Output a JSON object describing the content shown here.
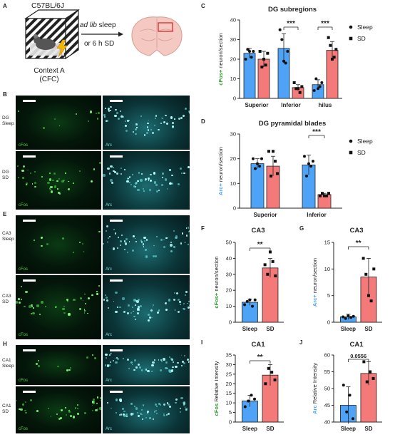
{
  "panels": {
    "A": {
      "letter": "A",
      "strain": "C57BL/6J",
      "context_name": "Context A",
      "context_code": "(CFC)",
      "arrow_line1_italic": "ad lib",
      "arrow_line1_rest": " sleep",
      "arrow_line2": "or 6 h SD"
    },
    "B": {
      "letter": "B",
      "row1": [
        "DG",
        "Sleep"
      ],
      "row2": [
        "DG",
        "SD"
      ],
      "ch1": "cFos",
      "ch2": "Arc"
    },
    "E": {
      "letter": "E",
      "row1": [
        "CA3",
        "Sleep"
      ],
      "row2": [
        "CA3",
        "SD"
      ],
      "ch1": "cFos",
      "ch2": "Arc"
    },
    "H": {
      "letter": "H",
      "row1": [
        "CA1",
        "Sleep"
      ],
      "row2": [
        "CA1",
        "SD"
      ],
      "ch1": "cFos",
      "ch2": "Arc"
    }
  },
  "legend": {
    "sleep": "Sleep",
    "sd": "SD"
  },
  "colors": {
    "sleep": "#4fa3f7",
    "sd": "#f47a7a",
    "cfos": "#2e9c2e",
    "arc": "#4fa3f7"
  },
  "chart_data": [
    {
      "panel": "C",
      "type": "bar",
      "title": "DG subregions",
      "ylabel_colored": "cFos+",
      "ylabel_rest": " neuron/section",
      "ylabel_color": "cfos",
      "categories": [
        "Superior",
        "Inferior",
        "hilus"
      ],
      "series": [
        {
          "name": "Sleep",
          "values": [
            23,
            25.5,
            7
          ],
          "err": [
            2.5,
            7.5,
            2.5
          ],
          "points": [
            [
              20,
              25,
              24,
              21,
              24
            ],
            [
              35,
              30,
              19,
              18,
              24
            ],
            [
              4,
              10,
              5,
              6,
              8
            ]
          ]
        },
        {
          "name": "SD",
          "values": [
            20,
            5.5,
            24.5
          ],
          "err": [
            4,
            1.5,
            4.5
          ],
          "points": [
            [
              24,
              16,
              20,
              17,
              23
            ],
            [
              8,
              5,
              5,
              3,
              6
            ],
            [
              31,
              27,
              20,
              21,
              25
            ]
          ]
        }
      ],
      "ylim": [
        0,
        40
      ],
      "yticks": [
        0,
        10,
        20,
        30,
        40
      ],
      "sig": [
        {
          "cat": 1,
          "label": "***"
        },
        {
          "cat": 2,
          "label": "***"
        }
      ]
    },
    {
      "panel": "D",
      "type": "bar",
      "title": "DG pyramidal blades",
      "ylabel_colored": "Arc+",
      "ylabel_rest": " neuron/section",
      "ylabel_color": "arc",
      "categories": [
        "Superior",
        "Inferior"
      ],
      "series": [
        {
          "name": "Sleep",
          "values": [
            18,
            17.5
          ],
          "err": [
            2,
            4
          ],
          "points": [
            [
              20,
              16,
              18,
              17,
              20
            ],
            [
              21,
              13,
              18,
              17,
              19
            ]
          ]
        },
        {
          "name": "SD",
          "values": [
            17,
            5.5
          ],
          "err": [
            4,
            0.5
          ],
          "points": [
            [
              23,
              13,
              23,
              19,
              14
            ],
            [
              5,
              6,
              5,
              5,
              6
            ]
          ]
        }
      ],
      "ylim": [
        0,
        30
      ],
      "yticks": [
        0,
        10,
        20,
        30
      ],
      "sig": [
        {
          "cat": 1,
          "label": "***"
        }
      ]
    },
    {
      "panel": "F",
      "type": "bar",
      "title": "CA3",
      "ylabel_colored": "cFos+",
      "ylabel_rest": " neuron/section",
      "ylabel_color": "cfos",
      "categories": [
        "Sleep",
        "SD"
      ],
      "values": [
        12.5,
        34
      ],
      "err": [
        2,
        6
      ],
      "points": [
        [
          11,
          13,
          14,
          10,
          14
        ],
        [
          36,
          30,
          44,
          38,
          29
        ]
      ],
      "ylim": [
        0,
        50
      ],
      "yticks": [
        0,
        10,
        20,
        30,
        40,
        50
      ],
      "sig_label": "**"
    },
    {
      "panel": "G",
      "type": "bar",
      "title": "CA3",
      "ylabel_colored": "Arc+",
      "ylabel_rest": " neuron/section",
      "ylabel_color": "arc",
      "categories": [
        "Sleep",
        "SD"
      ],
      "values": [
        1,
        8.5
      ],
      "err": [
        0.5,
        3.5
      ],
      "points": [
        [
          1,
          0.7,
          1.2,
          0.9,
          1.1
        ],
        [
          12,
          9,
          5,
          4,
          10
        ]
      ],
      "ylim": [
        0,
        15
      ],
      "yticks": [
        0,
        5,
        10,
        15
      ],
      "sig_label": "**"
    },
    {
      "panel": "I",
      "type": "bar",
      "title": "CA1",
      "ylabel_colored": "cFos",
      "ylabel_rest": " Relative Intensity",
      "ylabel_color": "cfos",
      "categories": [
        "Sleep",
        "SD"
      ],
      "values": [
        11,
        24.5
      ],
      "err": [
        3,
        5.5
      ],
      "points": [
        [
          8,
          11,
          14,
          12
        ],
        [
          20,
          28,
          26,
          22
        ]
      ],
      "ylim": [
        0,
        35
      ],
      "yticks": [
        0,
        5,
        10,
        15,
        20,
        25,
        30,
        35
      ],
      "sig_label": "**"
    },
    {
      "panel": "J",
      "type": "bar",
      "title": "CA1",
      "ylabel_colored": "Arc",
      "ylabel_rest": " Relative Intensity",
      "ylabel_color": "arc",
      "categories": [
        "Sleep",
        "SD"
      ],
      "values": [
        45,
        54.5
      ],
      "err": [
        5.5,
        3.5
      ],
      "points": [
        [
          51,
          43,
          48,
          41
        ],
        [
          58,
          52,
          55,
          53
        ]
      ],
      "ylim": [
        40,
        60
      ],
      "yticks": [
        40,
        45,
        50,
        55,
        60
      ],
      "sig_label": "0.0556"
    }
  ]
}
